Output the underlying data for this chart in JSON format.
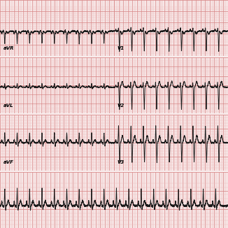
{
  "bg_color": "#f9eded",
  "bg_color_light": "#fdf5f5",
  "grid_major_color": "#d88888",
  "grid_minor_color": "#eebbbb",
  "row_sep_color": "#ffffff",
  "ecg_color": "#1a1a1a",
  "ecg_linewidth": 0.65,
  "label_fontsize": 5.0,
  "label_map": {
    "0": {
      "left": "aVR",
      "right": "V1"
    },
    "1": {
      "left": "aVL",
      "right": "V2"
    },
    "2": {
      "left": "aVF",
      "right": "V3"
    }
  },
  "hr": 110,
  "total_duration": 10.0,
  "half_duration": 5.0
}
